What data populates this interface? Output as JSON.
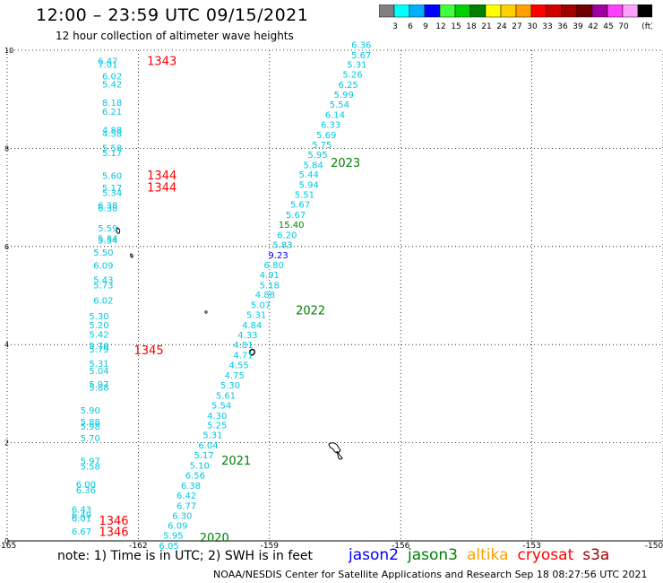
{
  "title": "12:00 – 23:59 UTC 09/15/2021",
  "subtitle": "12 hour collection of altimeter wave heights",
  "note": "note:  1) Time is in UTC;  2) SWH is in feet",
  "credit": "NOAA/NESDIS Center for Satellite Applications and Research     Sep 18 08:27:56 UTC 2021",
  "colorbar": {
    "labels": [
      "3",
      "6",
      "9",
      "12",
      "15",
      "18",
      "21",
      "24",
      "27",
      "30",
      "33",
      "36",
      "39",
      "42",
      "45",
      "70"
    ],
    "unit": "(ft)",
    "colors": [
      "#808080",
      "#00ffff",
      "#00b0ff",
      "#0000ff",
      "#40ff40",
      "#00d000",
      "#008000",
      "#ffff00",
      "#ffd000",
      "#ffa000",
      "#ff0000",
      "#d00000",
      "#a00000",
      "#700000",
      "#a000a0",
      "#ff40ff",
      "#ffa0ff",
      "#000000"
    ]
  },
  "satellites": [
    {
      "name": "jason2",
      "color": "#0000ff"
    },
    {
      "name": "jason3",
      "color": "#008000"
    },
    {
      "name": "altika",
      "color": "#ffa000"
    },
    {
      "name": "cryosat",
      "color": "#ff0000"
    },
    {
      "name": "s3a",
      "color": "#a00000"
    }
  ],
  "chart_data": {
    "type": "scatter",
    "x_ticks": [
      "-165",
      "-162",
      "-159",
      "-156",
      "-153",
      "-150"
    ],
    "y_ticks": [
      "0",
      "2",
      "4",
      "6",
      "8",
      "10"
    ],
    "xlim": [
      -165,
      -150
    ],
    "ylim": [
      0,
      10
    ],
    "grid": true,
    "track_time_labels": [
      {
        "text": "1343",
        "x": -161.8,
        "y": 9.7,
        "color": "#ff0000"
      },
      {
        "text": "1344",
        "x": -161.8,
        "y": 7.37,
        "color": "#ff0000"
      },
      {
        "text": "1344",
        "x": -161.8,
        "y": 7.12,
        "color": "#ff0000"
      },
      {
        "text": "1345",
        "x": -162.1,
        "y": 3.8,
        "color": "#ff0000"
      },
      {
        "text": "1346",
        "x": -162.9,
        "y": 0.33,
        "color": "#ff0000"
      },
      {
        "text": "1346",
        "x": -162.9,
        "y": 0.1,
        "color": "#ff0000"
      },
      {
        "text": "2023",
        "x": -157.6,
        "y": 7.62,
        "color": "#008000"
      },
      {
        "text": "2022",
        "x": -158.4,
        "y": 4.62,
        "color": "#008000"
      },
      {
        "text": "2021",
        "x": -160.1,
        "y": 1.55,
        "color": "#008000"
      },
      {
        "text": "2020",
        "x": -160.6,
        "y": -0.02,
        "color": "#008000"
      }
    ],
    "series": [
      {
        "name": "cryosat",
        "points": [
          {
            "x": -162.7,
            "y": 9.72,
            "v": "6.47"
          },
          {
            "x": -162.7,
            "y": 9.64,
            "v": "7.01"
          },
          {
            "x": -162.6,
            "y": 9.41,
            "v": "6.02"
          },
          {
            "x": -162.6,
            "y": 9.24,
            "v": "5.42"
          },
          {
            "x": -162.6,
            "y": 8.87,
            "v": "8.18"
          },
          {
            "x": -162.6,
            "y": 8.68,
            "v": "6.21"
          },
          {
            "x": -162.6,
            "y": 8.31,
            "v": "4.88"
          },
          {
            "x": -162.6,
            "y": 8.24,
            "v": "4.58"
          },
          {
            "x": -162.6,
            "y": 7.94,
            "v": "5.58"
          },
          {
            "x": -162.6,
            "y": 7.84,
            "v": "5.17"
          },
          {
            "x": -162.6,
            "y": 7.38,
            "v": "5.60"
          },
          {
            "x": -162.6,
            "y": 7.13,
            "v": "5.17"
          },
          {
            "x": -162.6,
            "y": 7.03,
            "v": "5.34"
          },
          {
            "x": -162.7,
            "y": 6.77,
            "v": "6.38"
          },
          {
            "x": -162.7,
            "y": 6.72,
            "v": "6.38"
          },
          {
            "x": -162.7,
            "y": 6.31,
            "v": "5.59"
          },
          {
            "x": -162.7,
            "y": 6.1,
            "v": "5.34"
          },
          {
            "x": -162.7,
            "y": 6.06,
            "v": "5.54"
          },
          {
            "x": -162.8,
            "y": 5.81,
            "v": "5.50"
          },
          {
            "x": -162.8,
            "y": 5.55,
            "v": "6.09"
          },
          {
            "x": -162.8,
            "y": 5.26,
            "v": "5.43"
          },
          {
            "x": -162.8,
            "y": 5.15,
            "v": "5.73"
          },
          {
            "x": -162.8,
            "y": 4.84,
            "v": "6.02"
          },
          {
            "x": -162.9,
            "y": 4.52,
            "v": "5.30"
          },
          {
            "x": -162.9,
            "y": 4.33,
            "v": "5.20"
          },
          {
            "x": -162.9,
            "y": 4.14,
            "v": "5.42"
          },
          {
            "x": -162.9,
            "y": 3.91,
            "v": "5.76"
          },
          {
            "x": -162.9,
            "y": 3.84,
            "v": "5.79"
          },
          {
            "x": -162.9,
            "y": 3.55,
            "v": "5.31"
          },
          {
            "x": -162.9,
            "y": 3.4,
            "v": "5.04"
          },
          {
            "x": -162.9,
            "y": 3.13,
            "v": "5.97"
          },
          {
            "x": -162.9,
            "y": 3.06,
            "v": "5.88"
          },
          {
            "x": -163.1,
            "y": 2.6,
            "v": "5.90"
          },
          {
            "x": -163.1,
            "y": 2.36,
            "v": "5.88"
          },
          {
            "x": -163.1,
            "y": 2.27,
            "v": "5.98"
          },
          {
            "x": -163.1,
            "y": 2.03,
            "v": "5.70"
          },
          {
            "x": -163.1,
            "y": 1.56,
            "v": "5.97"
          },
          {
            "x": -163.1,
            "y": 1.45,
            "v": "5.58"
          },
          {
            "x": -163.2,
            "y": 1.09,
            "v": "6.00"
          },
          {
            "x": -163.2,
            "y": 0.97,
            "v": "6.36"
          },
          {
            "x": -163.3,
            "y": 0.58,
            "v": "6.43"
          },
          {
            "x": -163.3,
            "y": 0.47,
            "v": "6.49"
          },
          {
            "x": -163.3,
            "y": 0.39,
            "v": "6.01"
          },
          {
            "x": -163.3,
            "y": 0.13,
            "v": "6.67"
          }
        ]
      },
      {
        "name": "jason3",
        "points": [
          {
            "x": -156.9,
            "y": 10.05,
            "v": "6.36"
          },
          {
            "x": -156.9,
            "y": 9.84,
            "v": "5.67"
          },
          {
            "x": -157.0,
            "y": 9.64,
            "v": "5.31"
          },
          {
            "x": -157.1,
            "y": 9.44,
            "v": "5.26"
          },
          {
            "x": -157.2,
            "y": 9.23,
            "v": "6.25"
          },
          {
            "x": -157.3,
            "y": 9.03,
            "v": "5.99"
          },
          {
            "x": -157.4,
            "y": 8.83,
            "v": "5.54"
          },
          {
            "x": -157.5,
            "y": 8.62,
            "v": "6.14"
          },
          {
            "x": -157.6,
            "y": 8.42,
            "v": "6.33"
          },
          {
            "x": -157.7,
            "y": 8.21,
            "v": "5.69"
          },
          {
            "x": -157.8,
            "y": 8.01,
            "v": "5.75"
          },
          {
            "x": -157.9,
            "y": 7.81,
            "v": "5.95"
          },
          {
            "x": -158.0,
            "y": 7.6,
            "v": "5.84"
          },
          {
            "x": -158.1,
            "y": 7.4,
            "v": "5.44"
          },
          {
            "x": -158.1,
            "y": 7.19,
            "v": "5.94"
          },
          {
            "x": -158.2,
            "y": 6.99,
            "v": "5.51"
          },
          {
            "x": -158.3,
            "y": 6.79,
            "v": "5.67"
          },
          {
            "x": -158.4,
            "y": 6.58,
            "v": "5.67"
          },
          {
            "x": -158.5,
            "y": 6.38,
            "v": "15.40"
          },
          {
            "x": -158.6,
            "y": 6.17,
            "v": "6.20"
          },
          {
            "x": -158.7,
            "y": 5.97,
            "v": "5.83"
          },
          {
            "x": -158.8,
            "y": 5.76,
            "v": "9.23"
          },
          {
            "x": -158.9,
            "y": 5.56,
            "v": "6.80"
          },
          {
            "x": -159.0,
            "y": 5.36,
            "v": "4.91"
          },
          {
            "x": -159.0,
            "y": 5.15,
            "v": "5.18"
          },
          {
            "x": -159.1,
            "y": 4.95,
            "v": "4.88"
          },
          {
            "x": -159.2,
            "y": 4.74,
            "v": "5.07"
          },
          {
            "x": -159.3,
            "y": 4.54,
            "v": "5.31"
          },
          {
            "x": -159.4,
            "y": 4.33,
            "v": "4.84"
          },
          {
            "x": -159.5,
            "y": 4.13,
            "v": "4.33"
          },
          {
            "x": -159.6,
            "y": 3.93,
            "v": "4.81"
          },
          {
            "x": -159.6,
            "y": 3.72,
            "v": "4.71"
          },
          {
            "x": -159.7,
            "y": 3.52,
            "v": "4.55"
          },
          {
            "x": -159.8,
            "y": 3.31,
            "v": "4.75"
          },
          {
            "x": -159.9,
            "y": 3.11,
            "v": "5.30"
          },
          {
            "x": -160.0,
            "y": 2.9,
            "v": "5.61"
          },
          {
            "x": -160.1,
            "y": 2.7,
            "v": "5.54"
          },
          {
            "x": -160.2,
            "y": 2.49,
            "v": "4.30"
          },
          {
            "x": -160.2,
            "y": 2.29,
            "v": "5.25"
          },
          {
            "x": -160.3,
            "y": 2.09,
            "v": "5.31"
          },
          {
            "x": -160.4,
            "y": 1.88,
            "v": "6.04"
          },
          {
            "x": -160.5,
            "y": 1.68,
            "v": "5.17"
          },
          {
            "x": -160.6,
            "y": 1.47,
            "v": "5.10"
          },
          {
            "x": -160.7,
            "y": 1.27,
            "v": "6.56"
          },
          {
            "x": -160.8,
            "y": 1.06,
            "v": "6.38"
          },
          {
            "x": -160.9,
            "y": 0.86,
            "v": "6.42"
          },
          {
            "x": -160.9,
            "y": 0.65,
            "v": "6.77"
          },
          {
            "x": -161.0,
            "y": 0.45,
            "v": "6.30"
          },
          {
            "x": -161.1,
            "y": 0.25,
            "v": "6.09"
          },
          {
            "x": -161.2,
            "y": 0.05,
            "v": "5.95"
          },
          {
            "x": -161.3,
            "y": -0.16,
            "v": "6.05"
          }
        ]
      }
    ]
  }
}
